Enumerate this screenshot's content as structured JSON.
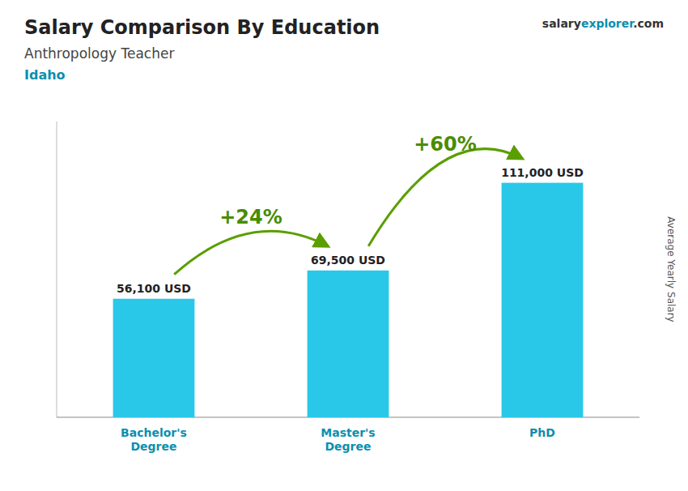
{
  "chart_data": {
    "type": "bar",
    "title": "Salary Comparison By Education",
    "subtitle": "Anthropology Teacher",
    "location": "Idaho",
    "brand": [
      "salary",
      "explorer",
      ".com"
    ],
    "ylabel": "Average Yearly Salary",
    "categories": [
      "Bachelor's\nDegree",
      "Master's\nDegree",
      "PhD"
    ],
    "values": [
      56100,
      69500,
      111000
    ],
    "value_labels": [
      "56,100 USD",
      "69,500 USD",
      "111,000 USD"
    ],
    "annotations": [
      "+24%",
      "+60%"
    ],
    "color": "#29c8e8",
    "ylim": [
      0,
      140000
    ],
    "data_labels": true,
    "tick_labels": "x",
    "grid": false
  }
}
